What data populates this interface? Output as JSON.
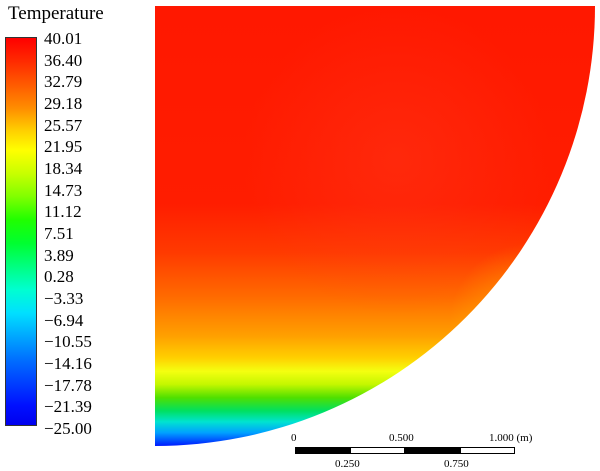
{
  "legend": {
    "title": "Temperature",
    "labels": [
      "40.01",
      "36.40",
      "32.79",
      "29.18",
      "25.57",
      "21.95",
      "18.34",
      "14.73",
      "11.12",
      "7.51",
      "3.89",
      "0.28",
      "−3.33",
      "−6.94",
      "−10.55",
      "−14.16",
      "−17.78",
      "−21.39",
      "−25.00"
    ]
  },
  "scale": {
    "top_labels": [
      "0",
      "0.500",
      "1.000 (m)"
    ],
    "bottom_labels": [
      "0.250",
      "0.750"
    ]
  },
  "colors": {
    "hot": "#ff1800",
    "warm": "#ff7a00",
    "yellow": "#f4ff10",
    "green": "#3fe000",
    "cyan": "#00e3d0",
    "blue": "#0018ff",
    "background": "#ffffff"
  }
}
